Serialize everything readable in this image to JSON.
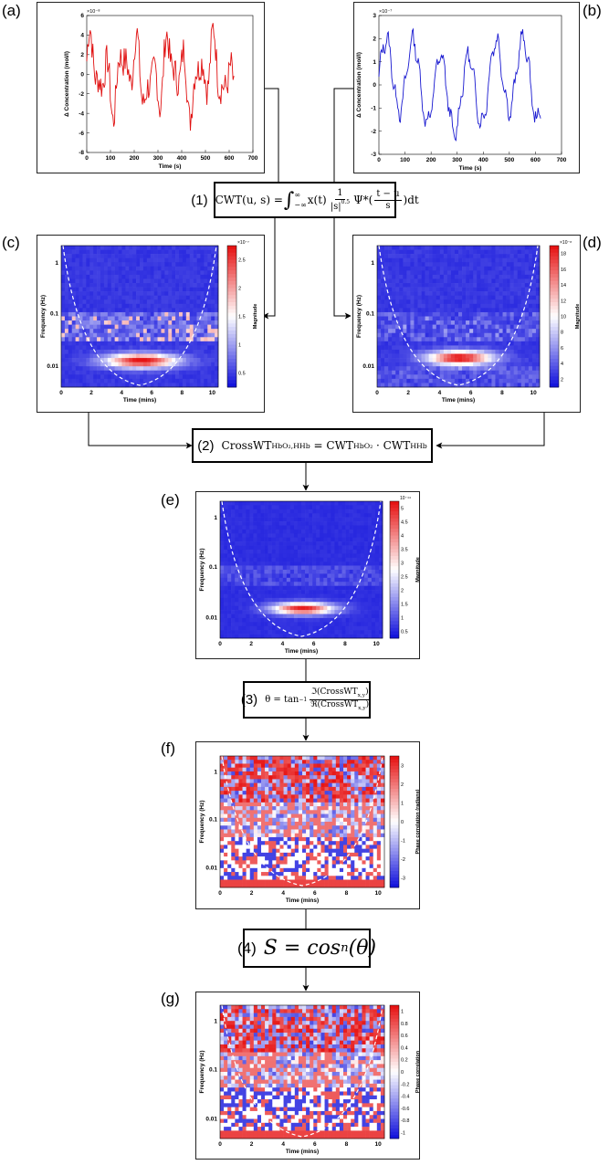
{
  "panels": {
    "a": {
      "label": "(a)",
      "xlabel": "Time (s)",
      "ylabel": "Δ Concentration (mol/l)",
      "exponent": "×10⁻⁸",
      "xticks": [
        "0",
        "100",
        "200",
        "300",
        "400",
        "500",
        "600",
        "700"
      ],
      "yticks": [
        "6",
        "4",
        "2",
        "0",
        "-2",
        "-4",
        "-6",
        "-8"
      ],
      "color": "#e01010"
    },
    "b": {
      "label": "(b)",
      "xlabel": "Time (s)",
      "ylabel": "Δ Concentration (mol/l)",
      "exponent": "×10⁻⁷",
      "xticks": [
        "0",
        "100",
        "200",
        "300",
        "400",
        "500",
        "600",
        "700"
      ],
      "yticks": [
        "3",
        "2",
        "1",
        "0",
        "-1",
        "-2",
        "-3"
      ],
      "color": "#1818d0"
    },
    "c": {
      "label": "(c)",
      "xlabel": "Time (mins)",
      "ylabel": "Frequency (Hz)",
      "cbar_label": "Magnitude",
      "exponent": "×10⁻⁷",
      "xticks": [
        "0",
        "2",
        "4",
        "6",
        "8",
        "10"
      ],
      "yticks": [
        "1",
        "0.1",
        "0.01"
      ],
      "cbar_ticks": [
        "2.5",
        "2",
        "1.5",
        "1",
        "0.5"
      ]
    },
    "d": {
      "label": "(d)",
      "xlabel": "Time (mins)",
      "ylabel": "Frequency (Hz)",
      "cbar_label": "Magnitude",
      "exponent": "×10⁻⁸",
      "xticks": [
        "0",
        "2",
        "4",
        "6",
        "8",
        "10"
      ],
      "yticks": [
        "1",
        "0.1",
        "0.01"
      ],
      "cbar_ticks": [
        "18",
        "16",
        "14",
        "12",
        "10",
        "8",
        "6",
        "4",
        "2"
      ]
    },
    "e": {
      "label": "(e)",
      "xlabel": "Time (mins)",
      "ylabel": "Frequency (Hz)",
      "cbar_label": "Magnitude",
      "exponent": "10⁻¹⁴",
      "xticks": [
        "0",
        "2",
        "4",
        "6",
        "8",
        "10"
      ],
      "yticks": [
        "1",
        "0.1",
        "0.01"
      ],
      "cbar_ticks": [
        "5",
        "4.5",
        "4",
        "3.5",
        "3",
        "2.5",
        "2",
        "1.5",
        "1",
        "0.5"
      ]
    },
    "f": {
      "label": "(f)",
      "xlabel": "Time (mins)",
      "ylabel": "Frequency (Hz)",
      "cbar_label": "Phase correlation (radians)",
      "xticks": [
        "0",
        "2",
        "4",
        "6",
        "8",
        "10"
      ],
      "yticks": [
        "1",
        "0.1",
        "0.01"
      ],
      "cbar_ticks": [
        "3",
        "2",
        "1",
        "0",
        "-1",
        "-2",
        "-3"
      ]
    },
    "g": {
      "label": "(g)",
      "xlabel": "Time (mins)",
      "ylabel": "Frequency (Hz)",
      "cbar_label": "Phase correlation",
      "xticks": [
        "0",
        "2",
        "4",
        "6",
        "8",
        "10"
      ],
      "yticks": [
        "1",
        "0.1",
        "0.01"
      ],
      "cbar_ticks": [
        "1",
        "0.8",
        "0.6",
        "0.4",
        "0.2",
        "0",
        "-0.2",
        "-0.4",
        "-0.6",
        "-0.8",
        "-1"
      ]
    }
  },
  "equations": {
    "eq1": {
      "num": "(1)",
      "lhs": "CWT(u, s) =",
      "integrand": "x(t)",
      "frac_num": "1",
      "frac_den": "|s|",
      "den_exp": "0.5",
      "psi": "Ψ*(",
      "frac2_num": "t − u",
      "frac2_den": "s",
      "tail": ")dt",
      "int_upper": "∞",
      "int_lower": "−∞"
    },
    "eq2": {
      "num": "(2)",
      "lhs": "CrossWT",
      "lhs_sub": "HbO₂,HHb",
      "eq": " = CWT",
      "sub1": "HbO₂",
      "dot": " · CWT",
      "sub2": "HHb"
    },
    "eq3": {
      "num": "(3)",
      "lhs": "θ = tan",
      "exp": "−1",
      "frac_num": "ℑ(CrossWT",
      "frac_den": "ℜ(CrossWT",
      "sub": "x,y",
      "close": ")"
    },
    "eq4": {
      "num": "(4)",
      "text": "S = cos",
      "exp": "n",
      "arg": "(θ)"
    }
  },
  "colors": {
    "red": "#e01010",
    "blue": "#1818d0",
    "arrow": "#000000"
  }
}
